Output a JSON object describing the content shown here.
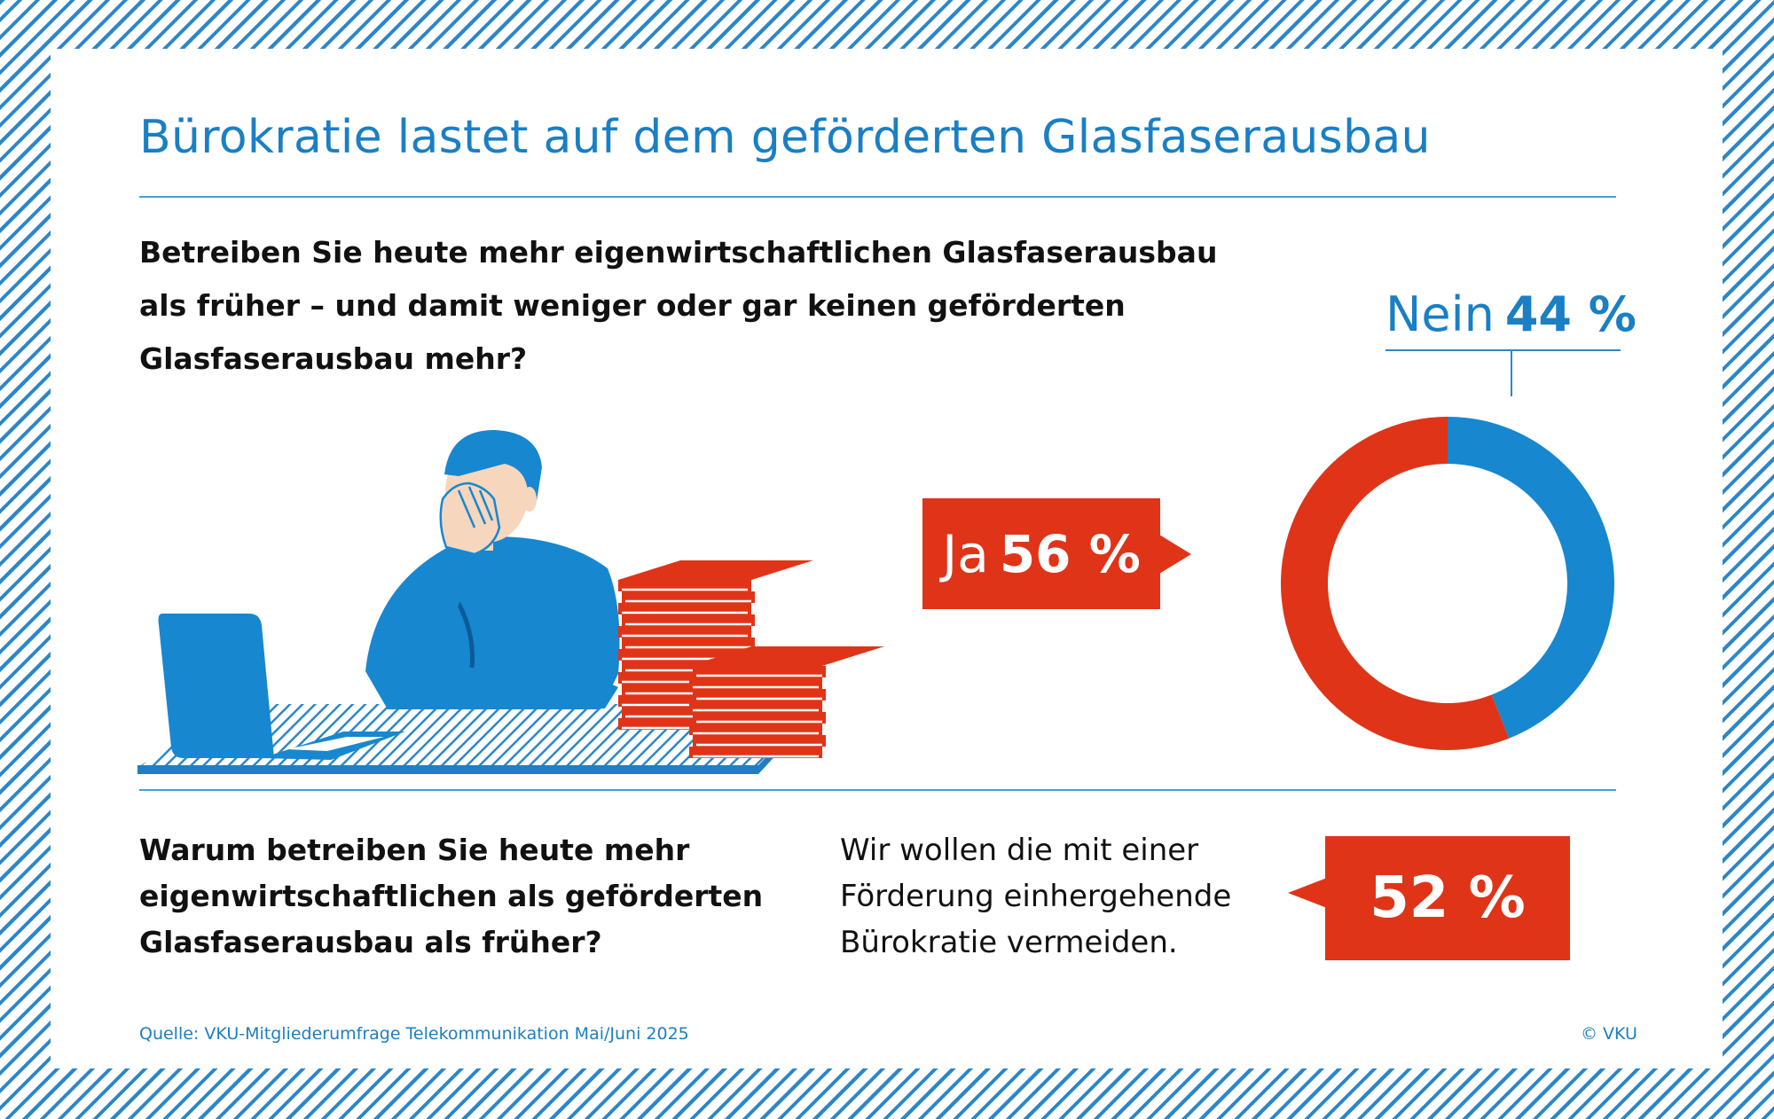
{
  "title": "Bürokratie lastet auf dem geförderten Glasfaserausbau",
  "question1": {
    "line1": "Betreiben Sie heute mehr eigenwirtschaftlichen Glasfaserausbau",
    "line2": "als früher – und damit weniger oder gar keinen geförderten",
    "line3": "Glasfaserausbau mehr?"
  },
  "labels": {
    "nein_word": "Nein",
    "nein_pct": "44 %",
    "ja_word": "Ja",
    "ja_pct": "56 %"
  },
  "question2": {
    "line1": "Warum betreiben Sie heute mehr",
    "line2": "eigenwirtschaftlichen als geförderten",
    "line3": "Glasfaserausbau als früher?"
  },
  "answer": {
    "line1": "Wir wollen die mit einer",
    "line2": "Förderung einhergehende",
    "line3": "Bürokratie vermeiden.",
    "pct": "52 %"
  },
  "source": "Quelle: VKU-Mitgliederumfrage Telekommunikation Mai/Juni 2025",
  "copyright": "© VKU",
  "colors": {
    "blue": "#1a7fc4",
    "red": "#e03418",
    "ring_blue": "#1787d0"
  },
  "chart_data": {
    "type": "pie",
    "donut": true,
    "categories": [
      "Nein",
      "Ja"
    ],
    "values": [
      44,
      56
    ],
    "colors": [
      "#1787d0",
      "#e03418"
    ]
  }
}
